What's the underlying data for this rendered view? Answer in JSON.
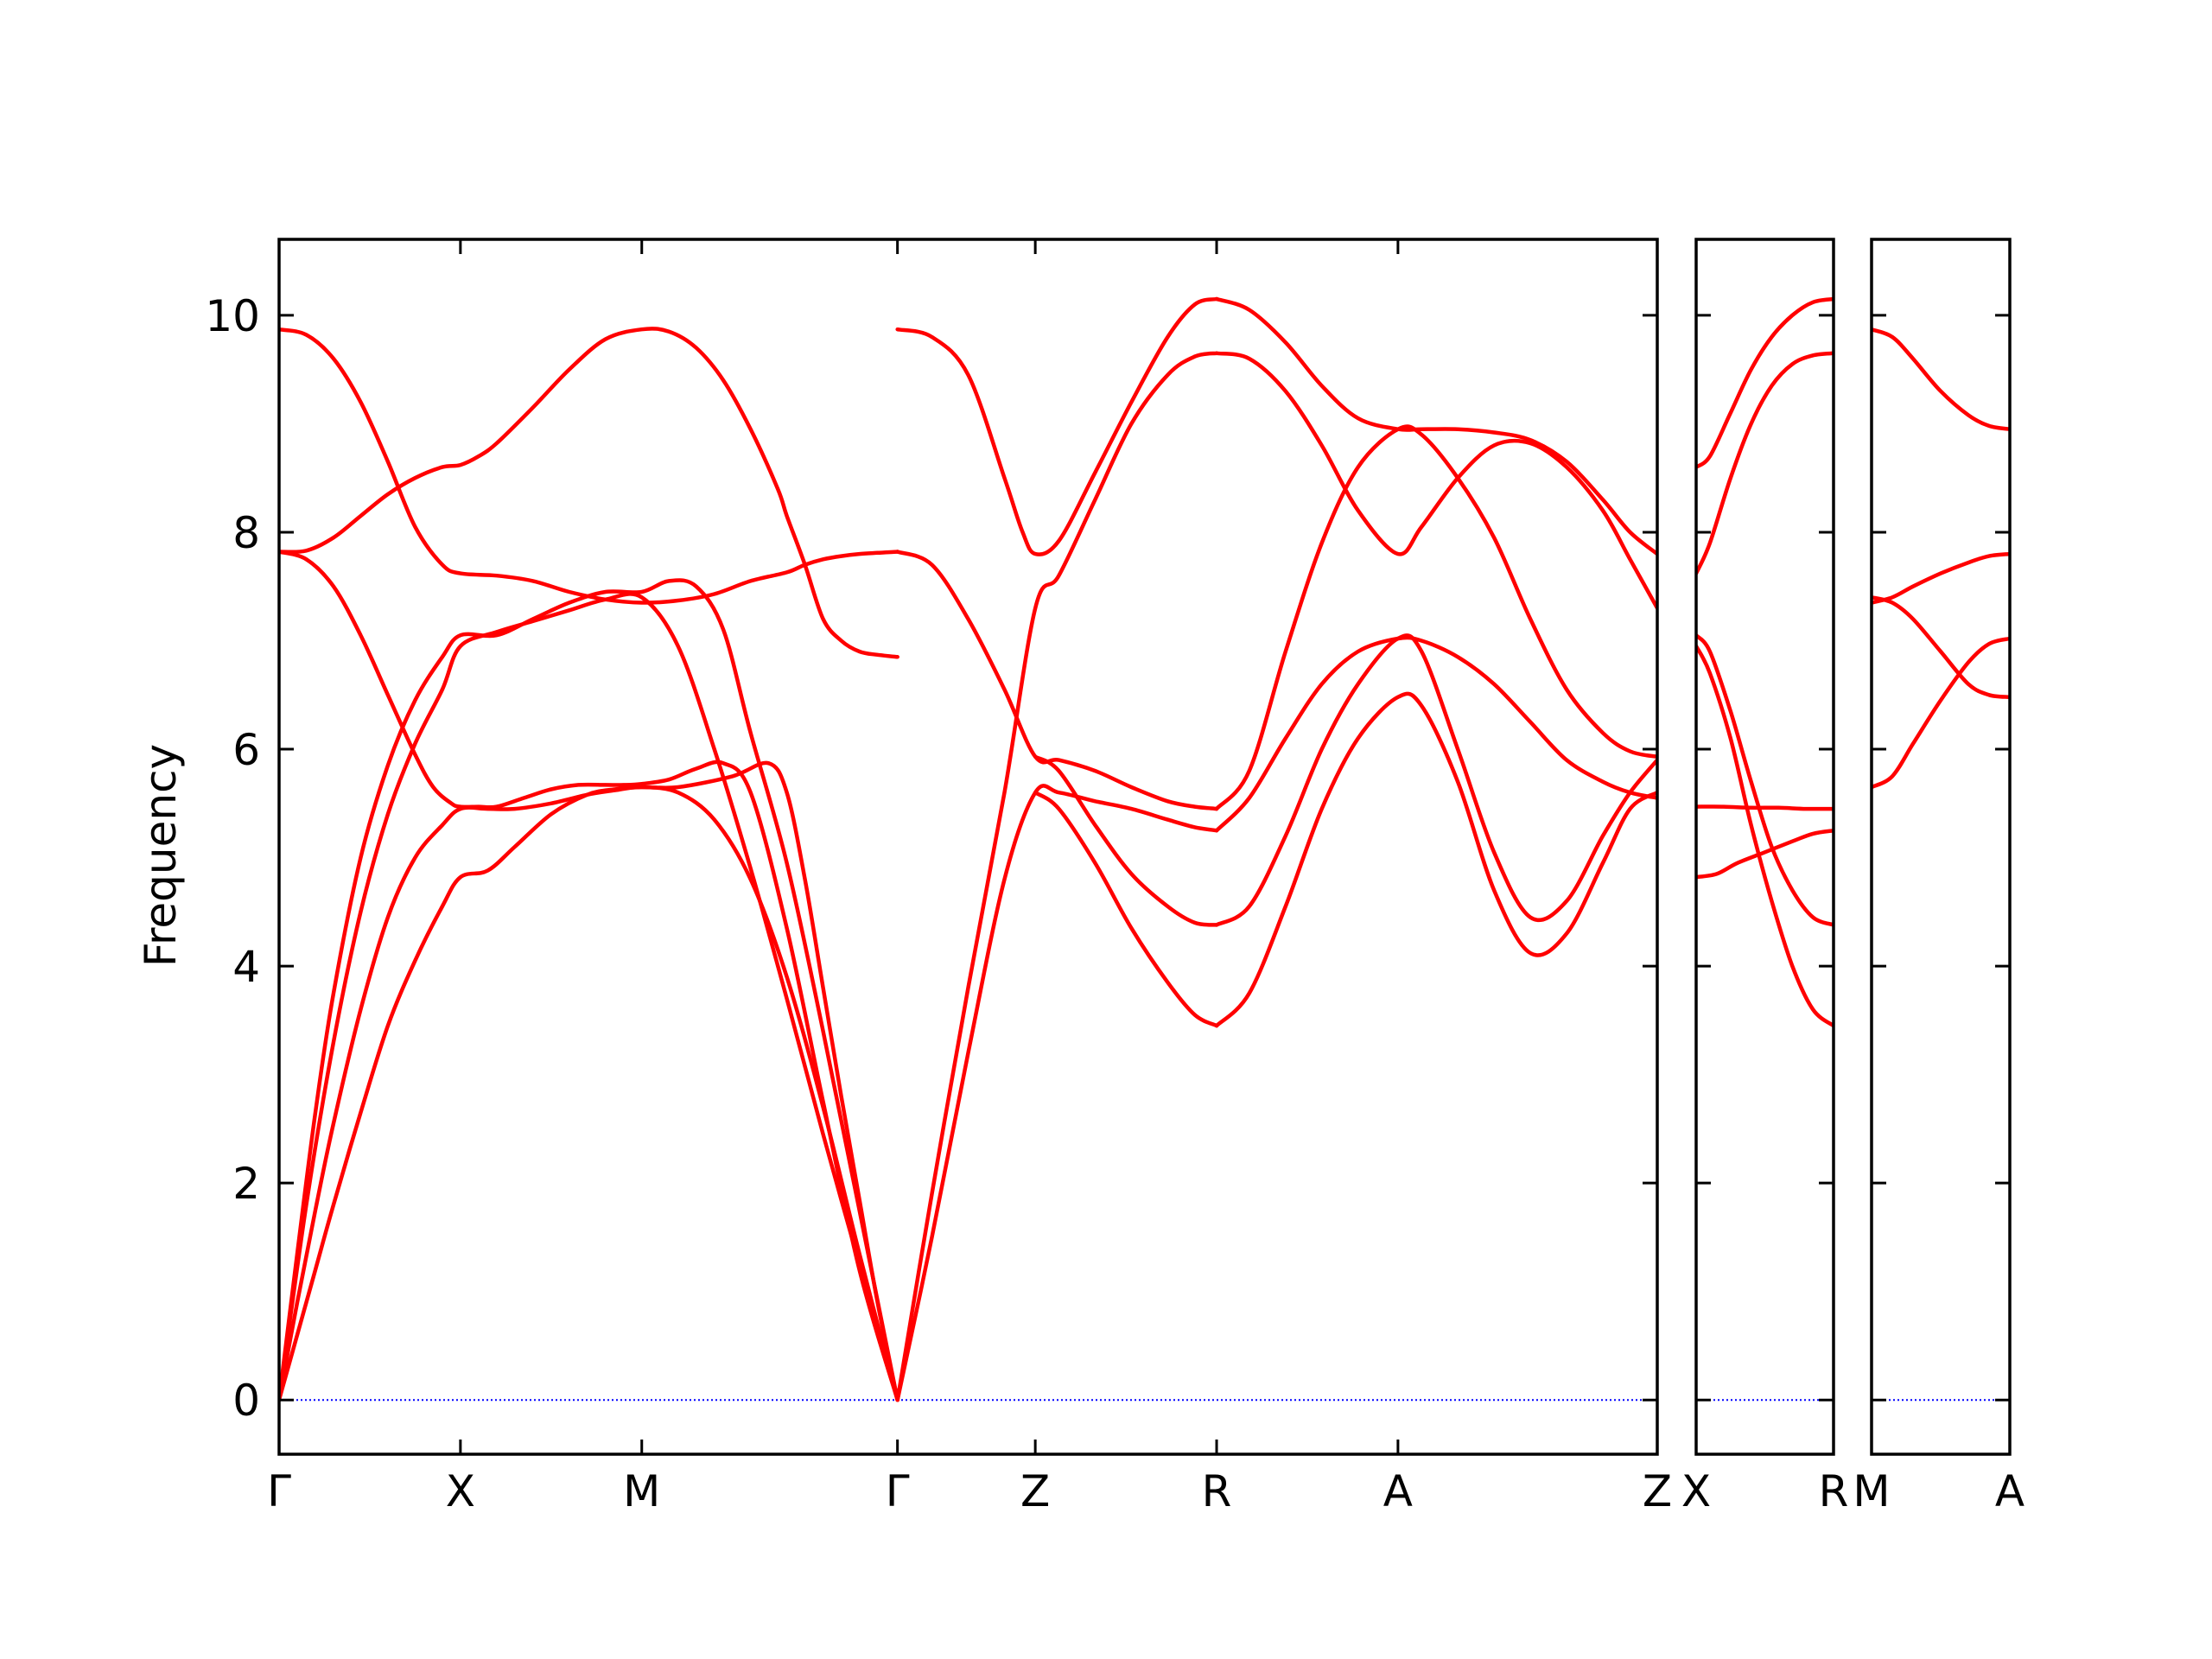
{
  "chart_data": {
    "type": "line",
    "title": "",
    "ylabel": "Frequency",
    "ylim": [
      -0.5,
      10.7
    ],
    "yticks": [
      0,
      2,
      4,
      6,
      8,
      10
    ],
    "colors": {
      "bands": "#ff0000",
      "zero_line": "#0000ff",
      "axes": "#000000"
    },
    "zero_line": {
      "y": 0,
      "style": "dotted"
    },
    "grid": false,
    "legend": "none",
    "panels": [
      {
        "xlim": [
          0.0,
          7.6
        ],
        "points": [
          {
            "label": "Γ",
            "x": 0.0
          },
          {
            "label": "X",
            "x": 1.0
          },
          {
            "label": "M",
            "x": 2.0
          },
          {
            "label": "Γ",
            "x": 3.41
          },
          {
            "label": "Z",
            "x": 4.17
          },
          {
            "label": "R",
            "x": 5.17
          },
          {
            "label": "A",
            "x": 6.17
          },
          {
            "label": "Z",
            "x": 7.6
          }
        ],
        "series": [
          {
            "x": [
              0.0,
              0.1,
              0.2,
              0.3,
              0.45,
              0.6,
              0.75,
              0.9,
              1.0,
              1.15,
              1.3,
              1.5,
              1.7,
              1.85,
              2.0,
              2.2,
              2.4,
              2.6,
              2.8,
              3.0,
              3.2,
              3.41
            ],
            "y": [
              0.0,
              0.9,
              1.75,
              2.55,
              3.6,
              4.45,
              5.0,
              5.3,
              5.45,
              5.45,
              5.45,
              5.5,
              5.58,
              5.62,
              5.65,
              5.6,
              5.35,
              4.8,
              3.9,
              2.7,
              1.35,
              0.0
            ]
          },
          {
            "x": [
              0.0,
              0.1,
              0.2,
              0.3,
              0.45,
              0.6,
              0.75,
              0.9,
              1.0,
              1.15,
              1.3,
              1.5,
              1.7,
              1.85,
              2.0,
              2.2,
              2.5,
              2.7,
              2.8,
              2.9,
              3.0,
              3.1,
              3.2,
              3.3,
              3.41
            ],
            "y": [
              0.0,
              0.6,
              1.2,
              1.8,
              2.65,
              3.45,
              4.05,
              4.55,
              4.82,
              4.88,
              5.1,
              5.4,
              5.58,
              5.63,
              5.65,
              5.65,
              5.75,
              5.87,
              5.6,
              4.8,
              3.8,
              2.8,
              1.85,
              0.9,
              0.0
            ]
          },
          {
            "x": [
              0.0,
              0.15,
              0.3,
              0.45,
              0.6,
              0.75,
              0.9,
              1.0,
              1.2,
              1.4,
              1.6,
              1.8,
              2.0,
              2.2,
              2.4,
              2.6,
              2.8,
              3.0,
              3.2,
              3.41
            ],
            "y": [
              0.0,
              1.8,
              3.3,
              4.5,
              5.4,
              6.05,
              6.55,
              6.95,
              7.08,
              7.18,
              7.28,
              7.38,
              7.4,
              6.95,
              6.0,
              4.9,
              3.7,
              2.45,
              1.25,
              0.0
            ]
          },
          {
            "x": [
              0.0,
              0.1,
              0.2,
              0.3,
              0.45,
              0.6,
              0.75,
              0.9,
              1.0,
              1.2,
              1.4,
              1.6,
              1.8,
              2.0,
              2.15,
              2.3,
              2.45,
              2.6,
              2.8,
              3.0,
              3.2,
              3.41
            ],
            "y": [
              0.0,
              1.35,
              2.65,
              3.75,
              5.0,
              5.85,
              6.45,
              6.85,
              7.05,
              7.05,
              7.2,
              7.35,
              7.45,
              7.45,
              7.55,
              7.5,
              7.1,
              6.15,
              4.95,
              3.4,
              1.75,
              0.0
            ]
          },
          {
            "x": [
              0.0,
              0.15,
              0.3,
              0.45,
              0.6,
              0.75,
              0.85,
              0.95,
              1.0,
              1.1,
              1.2,
              1.35,
              1.5,
              1.65,
              1.8,
              1.9,
              2.0,
              2.15,
              2.3,
              2.45,
              2.6,
              2.8,
              3.0,
              3.2,
              3.41
            ],
            "y": [
              7.82,
              7.75,
              7.5,
              7.05,
              6.5,
              5.95,
              5.65,
              5.5,
              5.47,
              5.47,
              5.47,
              5.55,
              5.63,
              5.67,
              5.67,
              5.67,
              5.68,
              5.72,
              5.82,
              5.87,
              5.6,
              4.35,
              2.75,
              1.2,
              0.0
            ]
          },
          {
            "x": [
              0.0,
              0.15,
              0.3,
              0.45,
              0.6,
              0.75,
              0.9,
              1.0,
              1.1,
              1.2,
              1.4,
              1.6,
              1.8,
              2.0,
              2.15,
              2.3,
              2.45,
              2.6,
              2.75,
              2.8,
              2.9,
              3.0,
              3.1,
              3.2,
              3.3,
              3.41
            ],
            "y": [
              7.82,
              7.83,
              7.95,
              8.15,
              8.35,
              8.5,
              8.6,
              8.62,
              8.7,
              8.82,
              9.15,
              9.5,
              9.78,
              9.87,
              9.85,
              9.7,
              9.4,
              8.95,
              8.4,
              8.15,
              7.7,
              7.2,
              7.0,
              6.9,
              6.87,
              6.85
            ]
          },
          {
            "x": [
              0.0,
              0.15,
              0.3,
              0.45,
              0.6,
              0.75,
              0.9,
              1.0,
              1.2,
              1.4,
              1.6,
              1.8,
              2.0,
              2.2,
              2.4,
              2.6,
              2.8,
              2.9,
              3.0,
              3.1,
              3.2,
              3.3,
              3.41
            ],
            "y": [
              9.87,
              9.82,
              9.6,
              9.2,
              8.65,
              8.05,
              7.7,
              7.62,
              7.6,
              7.55,
              7.45,
              7.38,
              7.35,
              7.37,
              7.43,
              7.55,
              7.63,
              7.7,
              7.75,
              7.78,
              7.8,
              7.81,
              7.82
            ]
          },
          {
            "x": [
              3.41,
              3.6,
              3.8,
              4.0,
              4.17,
              4.3,
              4.5,
              4.7,
              4.9,
              5.05,
              5.17
            ],
            "y": [
              0.0,
              1.5,
              3.2,
              4.8,
              5.6,
              5.6,
              5.52,
              5.45,
              5.35,
              5.28,
              5.25
            ]
          },
          {
            "x": [
              3.41,
              3.6,
              3.8,
              4.0,
              4.17,
              4.3,
              4.5,
              4.7,
              4.9,
              5.05,
              5.17
            ],
            "y": [
              0.0,
              1.9,
              3.8,
              5.6,
              7.3,
              7.6,
              8.3,
              9.0,
              9.45,
              9.62,
              9.65
            ]
          },
          {
            "x": [
              3.41,
              3.6,
              3.8,
              4.0,
              4.17,
              4.3,
              4.5,
              4.7,
              4.9,
              5.05,
              5.17
            ],
            "y": [
              7.82,
              7.7,
              7.2,
              6.55,
              5.93,
              5.9,
              5.8,
              5.65,
              5.52,
              5.47,
              5.45
            ]
          },
          {
            "x": [
              3.41,
              3.6,
              3.8,
              4.0,
              4.1,
              4.17,
              4.3,
              4.5,
              4.7,
              4.9,
              5.05,
              5.17
            ],
            "y": [
              9.87,
              9.8,
              9.45,
              8.5,
              8.0,
              7.8,
              7.92,
              8.55,
              9.2,
              9.8,
              10.1,
              10.15
            ]
          },
          {
            "x": [
              4.17,
              4.3,
              4.5,
              4.7,
              4.9,
              5.05,
              5.17
            ],
            "y": [
              5.6,
              5.45,
              4.95,
              4.35,
              3.85,
              3.55,
              3.45
            ]
          },
          {
            "x": [
              4.17,
              4.3,
              4.5,
              4.7,
              4.9,
              5.05,
              5.17
            ],
            "y": [
              5.93,
              5.8,
              5.3,
              4.85,
              4.55,
              4.4,
              4.38
            ]
          },
          {
            "x": [
              5.17,
              5.35,
              5.55,
              5.75,
              5.95,
              6.17,
              6.3,
              6.5,
              6.7,
              6.9,
              7.1,
              7.3,
              7.45,
              7.6
            ],
            "y": [
              3.45,
              3.75,
              4.55,
              5.45,
              6.1,
              6.48,
              6.4,
              5.7,
              4.7,
              4.12,
              4.3,
              4.95,
              5.45,
              5.6
            ]
          },
          {
            "x": [
              5.17,
              5.35,
              5.55,
              5.75,
              5.95,
              6.17,
              6.3,
              6.5,
              6.7,
              6.9,
              7.1,
              7.3,
              7.45,
              7.6
            ],
            "y": [
              4.38,
              4.55,
              5.2,
              6.0,
              6.6,
              7.02,
              6.9,
              6.0,
              5.05,
              4.45,
              4.6,
              5.2,
              5.6,
              5.9
            ]
          },
          {
            "x": [
              5.17,
              5.35,
              5.55,
              5.75,
              5.95,
              6.17,
              6.3,
              6.5,
              6.7,
              6.9,
              7.1,
              7.3,
              7.45,
              7.6
            ],
            "y": [
              5.25,
              5.55,
              6.1,
              6.6,
              6.9,
              7.02,
              7.0,
              6.85,
              6.6,
              6.25,
              5.9,
              5.7,
              5.6,
              5.55
            ]
          },
          {
            "x": [
              5.17,
              5.35,
              5.55,
              5.75,
              5.95,
              6.17,
              6.3,
              6.5,
              6.7,
              6.9,
              7.1,
              7.3,
              7.45,
              7.6
            ],
            "y": [
              5.45,
              5.8,
              6.9,
              7.9,
              8.6,
              8.95,
              8.9,
              8.5,
              7.95,
              7.2,
              6.55,
              6.15,
              5.98,
              5.93
            ]
          },
          {
            "x": [
              5.17,
              5.35,
              5.55,
              5.75,
              5.95,
              6.17,
              6.3,
              6.5,
              6.7,
              6.9,
              7.1,
              7.3,
              7.45,
              7.6
            ],
            "y": [
              9.65,
              9.6,
              9.3,
              8.8,
              8.2,
              7.8,
              8.05,
              8.5,
              8.8,
              8.82,
              8.6,
              8.2,
              7.75,
              7.3
            ]
          },
          {
            "x": [
              5.17,
              5.35,
              5.55,
              5.75,
              5.95,
              6.17,
              6.3,
              6.5,
              6.7,
              6.9,
              7.1,
              7.3,
              7.45,
              7.6
            ],
            "y": [
              10.15,
              10.05,
              9.75,
              9.35,
              9.05,
              8.95,
              8.95,
              8.95,
              8.92,
              8.85,
              8.65,
              8.3,
              8.0,
              7.8
            ]
          }
        ]
      },
      {
        "xlim": [
          0.0,
          1.0
        ],
        "points": [
          {
            "label": "X",
            "x": 0.0
          },
          {
            "label": "R",
            "x": 1.0
          }
        ],
        "series": [
          {
            "x": [
              0.0,
              0.15,
              0.3,
              0.5,
              0.7,
              0.85,
              1.0
            ],
            "y": [
              4.82,
              4.85,
              4.95,
              5.05,
              5.15,
              5.22,
              5.25
            ]
          },
          {
            "x": [
              0.0,
              0.2,
              0.4,
              0.6,
              0.8,
              1.0
            ],
            "y": [
              5.47,
              5.47,
              5.46,
              5.46,
              5.45,
              5.45
            ]
          },
          {
            "x": [
              0.0,
              0.1,
              0.25,
              0.4,
              0.55,
              0.7,
              0.85,
              1.0
            ],
            "y": [
              6.95,
              6.7,
              6.1,
              5.3,
              4.6,
              4.0,
              3.6,
              3.45
            ]
          },
          {
            "x": [
              0.0,
              0.1,
              0.25,
              0.4,
              0.55,
              0.7,
              0.85,
              1.0
            ],
            "y": [
              7.05,
              6.9,
              6.35,
              5.7,
              5.1,
              4.7,
              4.45,
              4.38
            ]
          },
          {
            "x": [
              0.0,
              0.1,
              0.25,
              0.4,
              0.55,
              0.7,
              0.85,
              1.0
            ],
            "y": [
              7.62,
              7.9,
              8.5,
              9.0,
              9.35,
              9.55,
              9.63,
              9.65
            ]
          },
          {
            "x": [
              0.0,
              0.1,
              0.25,
              0.4,
              0.55,
              0.7,
              0.85,
              1.0
            ],
            "y": [
              8.6,
              8.7,
              9.1,
              9.5,
              9.8,
              10.0,
              10.12,
              10.15
            ]
          }
        ]
      },
      {
        "xlim": [
          0.0,
          1.0
        ],
        "points": [
          {
            "label": "M",
            "x": 0.0
          },
          {
            "label": "A",
            "x": 1.0
          }
        ],
        "series": [
          {
            "x": [
              0.0,
              0.15,
              0.3,
              0.5,
              0.7,
              0.85,
              1.0
            ],
            "y": [
              5.65,
              5.75,
              6.05,
              6.45,
              6.8,
              6.97,
              7.02
            ]
          },
          {
            "x": [
              0.0,
              0.15,
              0.3,
              0.5,
              0.7,
              0.85,
              1.0
            ],
            "y": [
              7.4,
              7.35,
              7.2,
              6.9,
              6.6,
              6.5,
              6.48
            ]
          },
          {
            "x": [
              0.0,
              0.15,
              0.3,
              0.5,
              0.7,
              0.85,
              1.0
            ],
            "y": [
              7.35,
              7.4,
              7.5,
              7.62,
              7.72,
              7.78,
              7.8
            ]
          },
          {
            "x": [
              0.0,
              0.15,
              0.3,
              0.5,
              0.7,
              0.85,
              1.0
            ],
            "y": [
              9.87,
              9.8,
              9.6,
              9.3,
              9.08,
              8.98,
              8.95
            ]
          }
        ]
      }
    ]
  }
}
